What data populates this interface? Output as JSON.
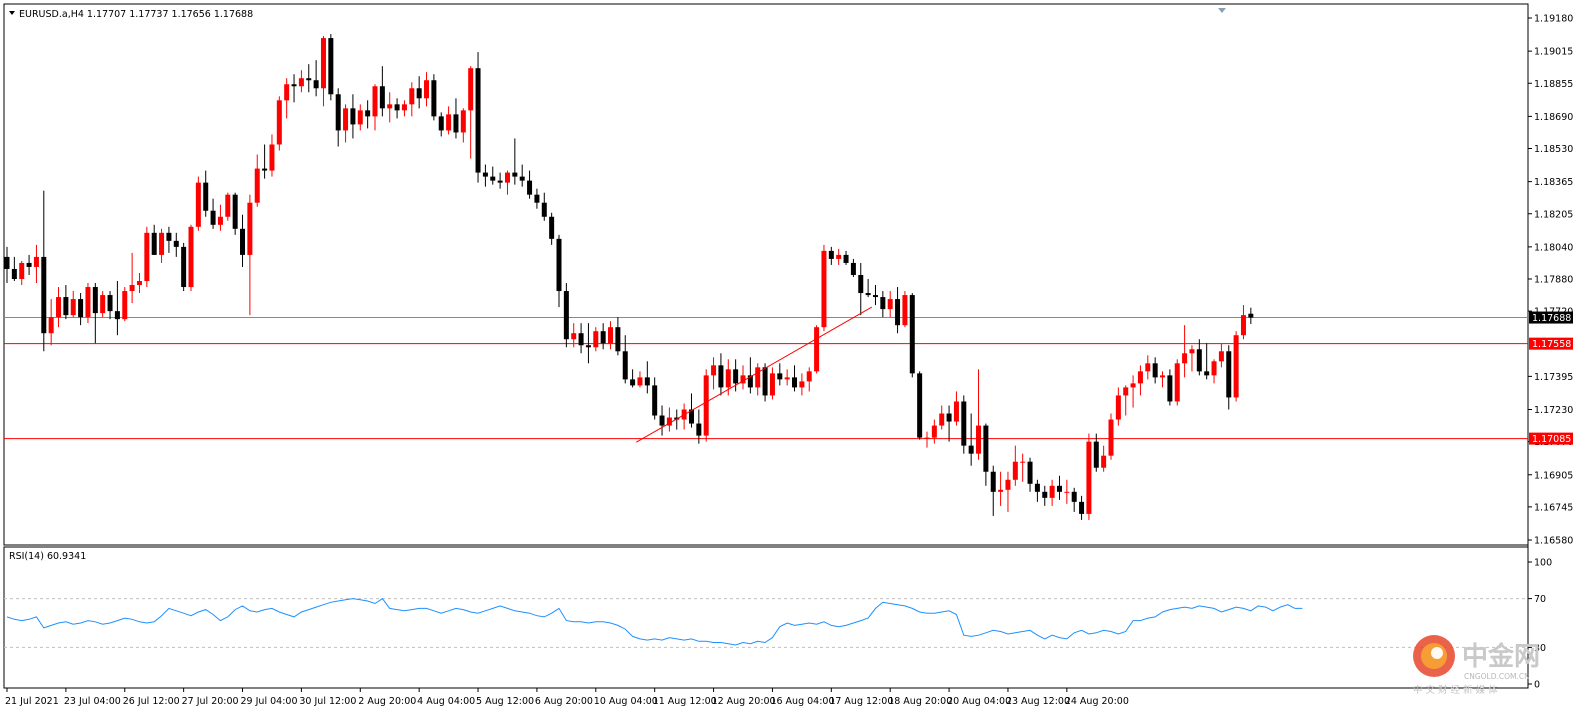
{
  "header": {
    "symbol_line": "EURUSD.a,H4  1.17707 1.17737 1.17656 1.17688"
  },
  "rsi": {
    "label": "RSI(14) 60.9341",
    "levels": [
      "100",
      "70",
      "30",
      "0"
    ],
    "level_values": [
      100,
      70,
      30,
      0
    ],
    "values": [
      55,
      53,
      52,
      53,
      55,
      46,
      48,
      50,
      51,
      49,
      50,
      52,
      51,
      49,
      50,
      52,
      54,
      53,
      51,
      50,
      51,
      56,
      62,
      60,
      58,
      56,
      59,
      61,
      57,
      52,
      55,
      61,
      64,
      60,
      59,
      61,
      62,
      59,
      57,
      55,
      59,
      61,
      63,
      65,
      67,
      68,
      69,
      70,
      69,
      68,
      66,
      70,
      62,
      61,
      60,
      61,
      62,
      62,
      60,
      58,
      60,
      62,
      61,
      59,
      58,
      60,
      62,
      64,
      62,
      60,
      59,
      58,
      56,
      55,
      58,
      62,
      52,
      51,
      51,
      50,
      51,
      51,
      50,
      48,
      45,
      39,
      37,
      36,
      37,
      36,
      38,
      37,
      36,
      37,
      35,
      35,
      34,
      34,
      33,
      32,
      34,
      33,
      35,
      34,
      38,
      47,
      50,
      48,
      49,
      50,
      49,
      51,
      48,
      47,
      48,
      50,
      52,
      54,
      62,
      67,
      66,
      65,
      64,
      62,
      59,
      58,
      58,
      59,
      60,
      57,
      40,
      39,
      40,
      42,
      44,
      43,
      41,
      42,
      43,
      44,
      40,
      37,
      40,
      38,
      37,
      42,
      44,
      41,
      42,
      44,
      43,
      41,
      43,
      52,
      52,
      54,
      55,
      59,
      61,
      62,
      63,
      62,
      64,
      63,
      62,
      59,
      61,
      63,
      62,
      60,
      64,
      63,
      60,
      63,
      65,
      62,
      62
    ]
  },
  "price_axis": {
    "ticks": [
      "1.19180",
      "1.19015",
      "1.18855",
      "1.18690",
      "1.18530",
      "1.18365",
      "1.18205",
      "1.18040",
      "1.17880",
      "1.17720",
      "1.17395",
      "1.17230",
      "1.17070",
      "1.16905",
      "1.16745",
      "1.16580"
    ],
    "tick_values": [
      1.1918,
      1.19015,
      1.18855,
      1.1869,
      1.1853,
      1.18365,
      1.18205,
      1.1804,
      1.1788,
      1.1772,
      1.17395,
      1.1723,
      1.1707,
      1.16905,
      1.16745,
      1.1658
    ],
    "tags": [
      {
        "text": "1.17688",
        "value": 1.17688,
        "bg": "#000000",
        "fg": "#ffffff"
      },
      {
        "text": "1.17558",
        "value": 1.17558,
        "bg": "#ff0000",
        "fg": "#ffffff"
      },
      {
        "text": "1.17085",
        "value": 1.17085,
        "bg": "#ff0000",
        "fg": "#ffffff"
      }
    ]
  },
  "time_axis": {
    "labels": [
      "21 Jul 2021",
      "23 Jul 04:00",
      "26 Jul 12:00",
      "27 Jul 20:00",
      "29 Jul 04:00",
      "30 Jul 12:00",
      "2 Aug 20:00",
      "4 Aug 04:00",
      "5 Aug 12:00",
      "6 Aug 20:00",
      "10 Aug 04:00",
      "11 Aug 12:00",
      "12 Aug 20:00",
      "16 Aug 04:00",
      "17 Aug 12:00",
      "18 Aug 20:00",
      "20 Aug 04:00",
      "23 Aug 12:00",
      "24 Aug 20:00"
    ],
    "label_bar_index": [
      0,
      8,
      16,
      24,
      32,
      40,
      48,
      56,
      64,
      72,
      80,
      88,
      96,
      104,
      112,
      120,
      128,
      136,
      144
    ]
  },
  "colors": {
    "bull": "#ff0000",
    "bear": "#000000",
    "price_line": "#6f8fae",
    "support_line": "#ff0000",
    "trend_line": "#ff0000",
    "rsi_line": "#1e90ff",
    "rsi_level": "#c0c0c0"
  },
  "watermark": {
    "title": "中金网",
    "url": "CNGOLD.COM.CN",
    "slogan": "中 文 财 经 新 媒 体"
  },
  "chart_data": {
    "type": "candlestick",
    "symbol": "EURUSD.a",
    "timeframe": "H4",
    "last_bar": {
      "open": 1.17707,
      "high": 1.17737,
      "low": 1.17656,
      "close": 1.17688
    },
    "ylim": [
      1.1658,
      1.1918
    ],
    "horizontal_lines": [
      1.17688,
      1.17558,
      1.17085
    ],
    "trendline": {
      "from_bar": 85.5,
      "from_price": 1.17067,
      "to_bar": 117.5,
      "to_price": 1.1774
    },
    "candles": [
      [
        1.1799,
        1.1804,
        1.1786,
        1.1793
      ],
      [
        1.1793,
        1.1799,
        1.1787,
        1.1788
      ],
      [
        1.1788,
        1.1797,
        1.1785,
        1.1796
      ],
      [
        1.1796,
        1.18,
        1.179,
        1.1794
      ],
      [
        1.1794,
        1.1805,
        1.1786,
        1.1799
      ],
      [
        1.1799,
        1.1832,
        1.1752,
        1.1761
      ],
      [
        1.1761,
        1.1778,
        1.1755,
        1.1769
      ],
      [
        1.1769,
        1.1784,
        1.1764,
        1.1779
      ],
      [
        1.1779,
        1.1785,
        1.1768,
        1.177
      ],
      [
        1.177,
        1.1782,
        1.1769,
        1.1778
      ],
      [
        1.1778,
        1.1781,
        1.1765,
        1.1769
      ],
      [
        1.1769,
        1.1786,
        1.1766,
        1.1784
      ],
      [
        1.1784,
        1.1786,
        1.1756,
        1.1771
      ],
      [
        1.1771,
        1.1782,
        1.1769,
        1.178
      ],
      [
        1.178,
        1.1782,
        1.1768,
        1.1772
      ],
      [
        1.1772,
        1.1787,
        1.176,
        1.1768
      ],
      [
        1.1768,
        1.1784,
        1.1767,
        1.1782
      ],
      [
        1.1782,
        1.1801,
        1.1776,
        1.1785
      ],
      [
        1.1785,
        1.1791,
        1.1781,
        1.1787
      ],
      [
        1.1787,
        1.1814,
        1.1784,
        1.1811
      ],
      [
        1.1811,
        1.1815,
        1.18,
        1.18
      ],
      [
        1.18,
        1.1813,
        1.1796,
        1.1811
      ],
      [
        1.1811,
        1.1814,
        1.1801,
        1.1807
      ],
      [
        1.1807,
        1.1811,
        1.1799,
        1.1804
      ],
      [
        1.1804,
        1.1806,
        1.1782,
        1.1784
      ],
      [
        1.1784,
        1.1815,
        1.1782,
        1.1814
      ],
      [
        1.1814,
        1.1839,
        1.1812,
        1.1836
      ],
      [
        1.1836,
        1.1842,
        1.1819,
        1.1822
      ],
      [
        1.1822,
        1.1828,
        1.1813,
        1.1815
      ],
      [
        1.1815,
        1.1825,
        1.1812,
        1.1819
      ],
      [
        1.1819,
        1.1831,
        1.1817,
        1.183
      ],
      [
        1.183,
        1.1831,
        1.181,
        1.1813
      ],
      [
        1.1813,
        1.182,
        1.1794,
        1.18
      ],
      [
        1.18,
        1.183,
        1.177,
        1.1826
      ],
      [
        1.1826,
        1.185,
        1.1824,
        1.1843
      ],
      [
        1.1843,
        1.1855,
        1.1838,
        1.1842
      ],
      [
        1.1842,
        1.186,
        1.1839,
        1.1855
      ],
      [
        1.1855,
        1.1879,
        1.1852,
        1.1877
      ],
      [
        1.1877,
        1.1888,
        1.1868,
        1.1885
      ],
      [
        1.1885,
        1.189,
        1.1876,
        1.1884
      ],
      [
        1.1884,
        1.1892,
        1.1881,
        1.1888
      ],
      [
        1.1888,
        1.1895,
        1.1881,
        1.1887
      ],
      [
        1.1887,
        1.1897,
        1.1879,
        1.1883
      ],
      [
        1.1883,
        1.1909,
        1.1874,
        1.1908
      ],
      [
        1.1908,
        1.191,
        1.1877,
        1.188
      ],
      [
        1.188,
        1.1883,
        1.1854,
        1.1862
      ],
      [
        1.1862,
        1.1875,
        1.1856,
        1.1873
      ],
      [
        1.1873,
        1.188,
        1.1858,
        1.1865
      ],
      [
        1.1865,
        1.1875,
        1.1862,
        1.1872
      ],
      [
        1.1872,
        1.1877,
        1.1863,
        1.1869
      ],
      [
        1.1869,
        1.1885,
        1.1862,
        1.1884
      ],
      [
        1.1884,
        1.1894,
        1.1869,
        1.1873
      ],
      [
        1.1873,
        1.1881,
        1.1866,
        1.1875
      ],
      [
        1.1875,
        1.1878,
        1.1868,
        1.1872
      ],
      [
        1.1872,
        1.1877,
        1.1869,
        1.1875
      ],
      [
        1.1875,
        1.1886,
        1.1869,
        1.1883
      ],
      [
        1.1883,
        1.1889,
        1.1873,
        1.1878
      ],
      [
        1.1878,
        1.1891,
        1.1874,
        1.1887
      ],
      [
        1.1887,
        1.189,
        1.1867,
        1.1869
      ],
      [
        1.1869,
        1.1871,
        1.1859,
        1.1862
      ],
      [
        1.1862,
        1.1874,
        1.186,
        1.187
      ],
      [
        1.187,
        1.1878,
        1.1858,
        1.1861
      ],
      [
        1.1861,
        1.1873,
        1.1856,
        1.1872
      ],
      [
        1.1872,
        1.1894,
        1.1848,
        1.1893
      ],
      [
        1.1893,
        1.1901,
        1.1836,
        1.1841
      ],
      [
        1.1841,
        1.1845,
        1.1834,
        1.1839
      ],
      [
        1.1839,
        1.1844,
        1.1835,
        1.1837
      ],
      [
        1.1837,
        1.1841,
        1.1833,
        1.1836
      ],
      [
        1.1836,
        1.1842,
        1.183,
        1.1841
      ],
      [
        1.1841,
        1.1858,
        1.1835,
        1.1839
      ],
      [
        1.1839,
        1.1845,
        1.1834,
        1.1837
      ],
      [
        1.1837,
        1.1842,
        1.1828,
        1.183
      ],
      [
        1.183,
        1.1833,
        1.1823,
        1.1826
      ],
      [
        1.1826,
        1.1831,
        1.1817,
        1.1819
      ],
      [
        1.1819,
        1.1821,
        1.1805,
        1.1808
      ],
      [
        1.1808,
        1.181,
        1.1774,
        1.1782
      ],
      [
        1.1782,
        1.1786,
        1.1754,
        1.1758
      ],
      [
        1.1758,
        1.1766,
        1.1754,
        1.1761
      ],
      [
        1.1761,
        1.1766,
        1.1751,
        1.1755
      ],
      [
        1.1755,
        1.1766,
        1.1746,
        1.1754
      ],
      [
        1.1754,
        1.1764,
        1.1752,
        1.1762
      ],
      [
        1.1762,
        1.1766,
        1.1753,
        1.1756
      ],
      [
        1.1756,
        1.1767,
        1.1753,
        1.1764
      ],
      [
        1.1764,
        1.1769,
        1.175,
        1.1752
      ],
      [
        1.1752,
        1.176,
        1.1736,
        1.1738
      ],
      [
        1.1738,
        1.1743,
        1.1734,
        1.1735
      ],
      [
        1.1735,
        1.1742,
        1.1734,
        1.1739
      ],
      [
        1.1739,
        1.1747,
        1.1731,
        1.1735
      ],
      [
        1.1735,
        1.1739,
        1.1718,
        1.172
      ],
      [
        1.172,
        1.1725,
        1.171,
        1.1715
      ],
      [
        1.1715,
        1.1724,
        1.1712,
        1.1719
      ],
      [
        1.1719,
        1.1723,
        1.1713,
        1.1718
      ],
      [
        1.1718,
        1.1726,
        1.1713,
        1.1723
      ],
      [
        1.1723,
        1.1731,
        1.1714,
        1.1716
      ],
      [
        1.1716,
        1.1723,
        1.1706,
        1.171
      ],
      [
        1.171,
        1.1743,
        1.1707,
        1.174
      ],
      [
        1.174,
        1.1749,
        1.1733,
        1.1745
      ],
      [
        1.1745,
        1.1751,
        1.173,
        1.1734
      ],
      [
        1.1734,
        1.1748,
        1.173,
        1.1743
      ],
      [
        1.1743,
        1.1748,
        1.1732,
        1.1736
      ],
      [
        1.1736,
        1.1745,
        1.1733,
        1.174
      ],
      [
        1.174,
        1.1749,
        1.1731,
        1.1734
      ],
      [
        1.1734,
        1.1746,
        1.173,
        1.1744
      ],
      [
        1.1744,
        1.1746,
        1.1727,
        1.173
      ],
      [
        1.173,
        1.1744,
        1.1728,
        1.1741
      ],
      [
        1.1741,
        1.1746,
        1.1735,
        1.1738
      ],
      [
        1.1738,
        1.1743,
        1.1735,
        1.1739
      ],
      [
        1.1739,
        1.1745,
        1.1732,
        1.1734
      ],
      [
        1.1734,
        1.1741,
        1.173,
        1.1737
      ],
      [
        1.1737,
        1.1744,
        1.1732,
        1.1742
      ],
      [
        1.1742,
        1.1765,
        1.1741,
        1.1764
      ],
      [
        1.1764,
        1.1805,
        1.1762,
        1.1802
      ],
      [
        1.1802,
        1.1804,
        1.1795,
        1.1798
      ],
      [
        1.1798,
        1.1803,
        1.1795,
        1.18
      ],
      [
        1.18,
        1.1802,
        1.1795,
        1.1796
      ],
      [
        1.1796,
        1.1798,
        1.1789,
        1.179
      ],
      [
        1.179,
        1.1796,
        1.177,
        1.1781
      ],
      [
        1.1781,
        1.1788,
        1.1779,
        1.178
      ],
      [
        1.178,
        1.1785,
        1.1775,
        1.1779
      ],
      [
        1.1779,
        1.1782,
        1.1769,
        1.1773
      ],
      [
        1.1773,
        1.1782,
        1.1769,
        1.1778
      ],
      [
        1.1778,
        1.1784,
        1.1761,
        1.1765
      ],
      [
        1.1765,
        1.1782,
        1.1764,
        1.178
      ],
      [
        1.178,
        1.1781,
        1.1739,
        1.1741
      ],
      [
        1.1741,
        1.1742,
        1.1708,
        1.1709
      ],
      [
        1.1709,
        1.1712,
        1.1704,
        1.1709
      ],
      [
        1.1709,
        1.1718,
        1.1706,
        1.1715
      ],
      [
        1.1715,
        1.1725,
        1.1713,
        1.1721
      ],
      [
        1.1721,
        1.1725,
        1.1707,
        1.1717
      ],
      [
        1.1717,
        1.1732,
        1.1715,
        1.1727
      ],
      [
        1.1727,
        1.173,
        1.1701,
        1.1705
      ],
      [
        1.1705,
        1.1721,
        1.1695,
        1.1701
      ],
      [
        1.1701,
        1.1743,
        1.1698,
        1.1715
      ],
      [
        1.1715,
        1.1716,
        1.1685,
        1.1692
      ],
      [
        1.1692,
        1.1695,
        1.167,
        1.1682
      ],
      [
        1.1682,
        1.1692,
        1.1675,
        1.1683
      ],
      [
        1.1683,
        1.1692,
        1.1672,
        1.1688
      ],
      [
        1.1688,
        1.1705,
        1.1685,
        1.1697
      ],
      [
        1.1697,
        1.1701,
        1.1687,
        1.1697
      ],
      [
        1.1697,
        1.1699,
        1.1682,
        1.1686
      ],
      [
        1.1686,
        1.1688,
        1.1677,
        1.1682
      ],
      [
        1.1682,
        1.1685,
        1.1675,
        1.1679
      ],
      [
        1.1679,
        1.1688,
        1.1675,
        1.1685
      ],
      [
        1.1685,
        1.169,
        1.1678,
        1.1682
      ],
      [
        1.1682,
        1.1688,
        1.1676,
        1.1682
      ],
      [
        1.1682,
        1.1684,
        1.1672,
        1.1677
      ],
      [
        1.1677,
        1.168,
        1.1668,
        1.1671
      ],
      [
        1.1671,
        1.1711,
        1.1668,
        1.1707
      ],
      [
        1.1707,
        1.1711,
        1.1692,
        1.1694
      ],
      [
        1.1694,
        1.1705,
        1.1692,
        1.17
      ],
      [
        1.17,
        1.1721,
        1.1698,
        1.1718
      ],
      [
        1.1718,
        1.1734,
        1.1715,
        1.173
      ],
      [
        1.173,
        1.1735,
        1.172,
        1.1734
      ],
      [
        1.1734,
        1.174,
        1.1724,
        1.1736
      ],
      [
        1.1736,
        1.1745,
        1.173,
        1.1742
      ],
      [
        1.1742,
        1.175,
        1.1738,
        1.1746
      ],
      [
        1.1746,
        1.1749,
        1.1736,
        1.1739
      ],
      [
        1.1739,
        1.1742,
        1.1734,
        1.174
      ],
      [
        1.174,
        1.1743,
        1.1725,
        1.1727
      ],
      [
        1.1727,
        1.1748,
        1.1725,
        1.1746
      ],
      [
        1.1746,
        1.1765,
        1.1739,
        1.1751
      ],
      [
        1.1751,
        1.1755,
        1.1742,
        1.1753
      ],
      [
        1.1753,
        1.1758,
        1.174,
        1.1742
      ],
      [
        1.1742,
        1.1756,
        1.1738,
        1.174
      ],
      [
        1.174,
        1.1748,
        1.1736,
        1.1747
      ],
      [
        1.1747,
        1.1756,
        1.1744,
        1.1752
      ],
      [
        1.1752,
        1.1755,
        1.1723,
        1.1729
      ],
      [
        1.1729,
        1.1762,
        1.1727,
        1.176
      ],
      [
        1.176,
        1.1775,
        1.1758,
        1.177
      ],
      [
        1.17707,
        1.17737,
        1.17656,
        1.17688
      ]
    ]
  }
}
